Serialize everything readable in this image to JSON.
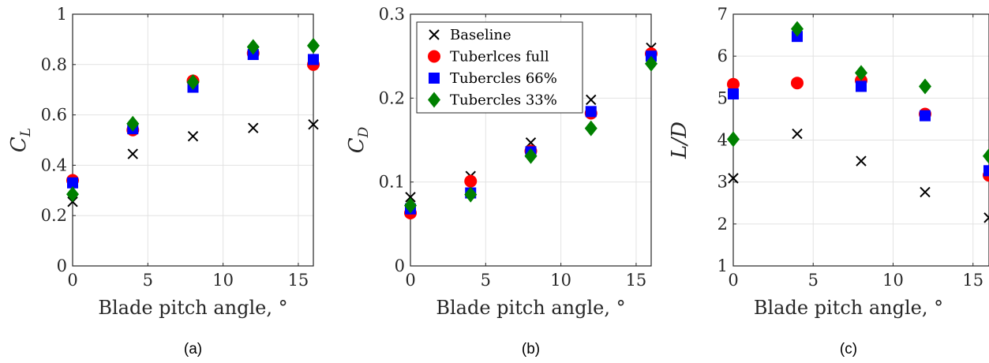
{
  "chart_data": [
    {
      "type": "scatter",
      "panel_label": "(a)",
      "xlabel": "Blade pitch angle, °",
      "ylabel": "C",
      "ylabel_sub": "L",
      "xlim": [
        0,
        16
      ],
      "ylim": [
        0,
        1
      ],
      "xticks": [
        0,
        5,
        10,
        15
      ],
      "yticks": [
        0,
        0.2,
        0.4,
        0.6,
        0.8,
        1
      ],
      "ytick_labels": [
        "0",
        "0.2",
        "0.4",
        "0.6",
        "0.8",
        "1"
      ],
      "grid": true,
      "x": [
        0,
        4,
        8,
        12,
        16
      ],
      "series": [
        {
          "values": [
            0.255,
            0.445,
            0.515,
            0.548,
            0.562
          ]
        },
        {
          "values": [
            0.34,
            0.54,
            0.735,
            0.845,
            0.8
          ]
        },
        {
          "values": [
            0.33,
            0.545,
            0.71,
            0.84,
            0.82
          ]
        },
        {
          "values": [
            0.285,
            0.565,
            0.73,
            0.87,
            0.875
          ]
        }
      ]
    },
    {
      "type": "scatter",
      "panel_label": "(b)",
      "xlabel": "Blade pitch angle, °",
      "ylabel": "C",
      "ylabel_sub": "D",
      "xlim": [
        0,
        16
      ],
      "ylim": [
        0,
        0.3
      ],
      "xticks": [
        0,
        5,
        10,
        15
      ],
      "yticks": [
        0,
        0.1,
        0.2,
        0.3
      ],
      "ytick_labels": [
        "0",
        "0.1",
        "0.2",
        "0.3"
      ],
      "grid": true,
      "legend_position": "top-left",
      "x": [
        0,
        4,
        8,
        12,
        16
      ],
      "series": [
        {
          "name": "Baseline",
          "values": [
            0.082,
            0.107,
            0.147,
            0.198,
            0.26
          ]
        },
        {
          "name": "Tuberlces full",
          "values": [
            0.063,
            0.101,
            0.137,
            0.182,
            0.253
          ]
        },
        {
          "name": "Tubercles 66%",
          "values": [
            0.068,
            0.087,
            0.136,
            0.184,
            0.25
          ]
        },
        {
          "name": "Tubercles 33%",
          "values": [
            0.072,
            0.085,
            0.131,
            0.164,
            0.241
          ]
        }
      ]
    },
    {
      "type": "scatter",
      "panel_label": "(c)",
      "xlabel": "Blade pitch angle, °",
      "ylabel": "L/D",
      "ylabel_sub": "",
      "xlim": [
        0,
        16
      ],
      "ylim": [
        1,
        7
      ],
      "xticks": [
        0,
        5,
        10,
        15
      ],
      "yticks": [
        1,
        2,
        3,
        4,
        5,
        6,
        7
      ],
      "ytick_labels": [
        "1",
        "2",
        "3",
        "4",
        "5",
        "6",
        "7"
      ],
      "grid": true,
      "x": [
        0,
        4,
        8,
        12,
        16
      ],
      "series": [
        {
          "values": [
            3.09,
            4.15,
            3.5,
            2.76,
            2.15
          ]
        },
        {
          "values": [
            5.33,
            5.36,
            5.42,
            4.62,
            3.16
          ]
        },
        {
          "values": [
            5.1,
            6.47,
            5.28,
            4.58,
            3.27
          ]
        },
        {
          "values": [
            4.02,
            6.65,
            5.6,
            5.28,
            3.62
          ]
        }
      ]
    }
  ],
  "series_styles": [
    {
      "marker": "x",
      "color": "#000000"
    },
    {
      "marker": "circle",
      "color": "#ff0000"
    },
    {
      "marker": "square",
      "color": "#0000ff"
    },
    {
      "marker": "diamond",
      "color": "#008000"
    }
  ]
}
